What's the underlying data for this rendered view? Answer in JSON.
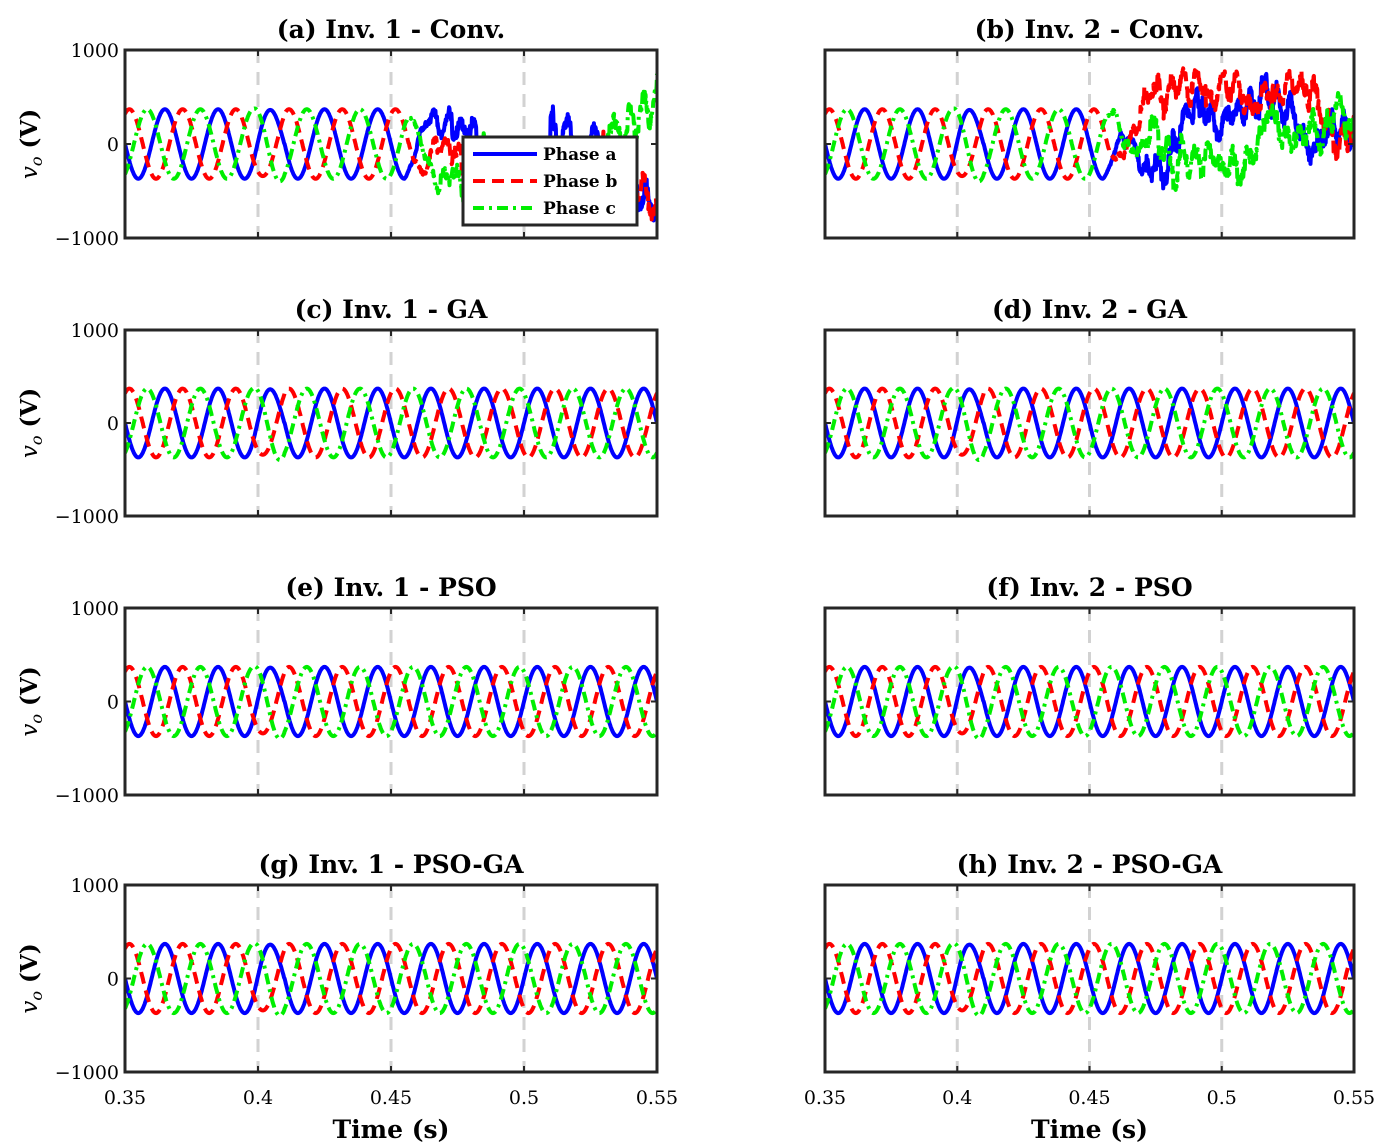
{
  "chart_data": {
    "type": "line",
    "x_unit_label": "Time (s)",
    "y_unit_label_var": "v",
    "y_unit_label_sub": "o",
    "y_unit_label_rest": " (V)",
    "xlim": [
      0.35,
      0.55
    ],
    "ylim": [
      -1000,
      1000
    ],
    "xticks": [
      0.35,
      0.4,
      0.45,
      0.5,
      0.55
    ],
    "xtick_labels": [
      "0.35",
      "0.4",
      "0.45",
      "0.5",
      "0.55"
    ],
    "yticks": [
      -1000,
      0,
      1000
    ],
    "ytick_labels": [
      "−1000",
      "0",
      "1000"
    ],
    "vertical_markers": [
      0.4,
      0.45,
      0.5
    ],
    "frequency_hz": 50,
    "amplitude_v": 370,
    "legend": {
      "placement": "inside-right",
      "entries": [
        "Phase a",
        "Phase b",
        "Phase c"
      ]
    },
    "series_colors": {
      "Phase a": "#0000ff",
      "Phase b": "#ff0000",
      "Phase c": "#00ee00"
    },
    "panels": [
      {
        "id": "a",
        "title": "(a) Inv. 1 - Conv.",
        "behavior": "unstable after 0.45 s",
        "unstable_from": 0.455
      },
      {
        "id": "b",
        "title": "(b) Inv. 2 - Conv.",
        "behavior": "unstable after 0.45 s",
        "unstable_from": 0.455
      },
      {
        "id": "c",
        "title": "(c) Inv. 1 - GA",
        "behavior": "stable"
      },
      {
        "id": "d",
        "title": "(d) Inv. 2 - GA",
        "behavior": "stable"
      },
      {
        "id": "e",
        "title": "(e) Inv. 1 - PSO",
        "behavior": "stable"
      },
      {
        "id": "f",
        "title": "(f) Inv. 2 - PSO",
        "behavior": "stable"
      },
      {
        "id": "g",
        "title": "(g) Inv. 1 - PSO-GA",
        "behavior": "stable"
      },
      {
        "id": "h",
        "title": "(h) Inv. 2 - PSO-GA",
        "behavior": "stable"
      }
    ]
  }
}
